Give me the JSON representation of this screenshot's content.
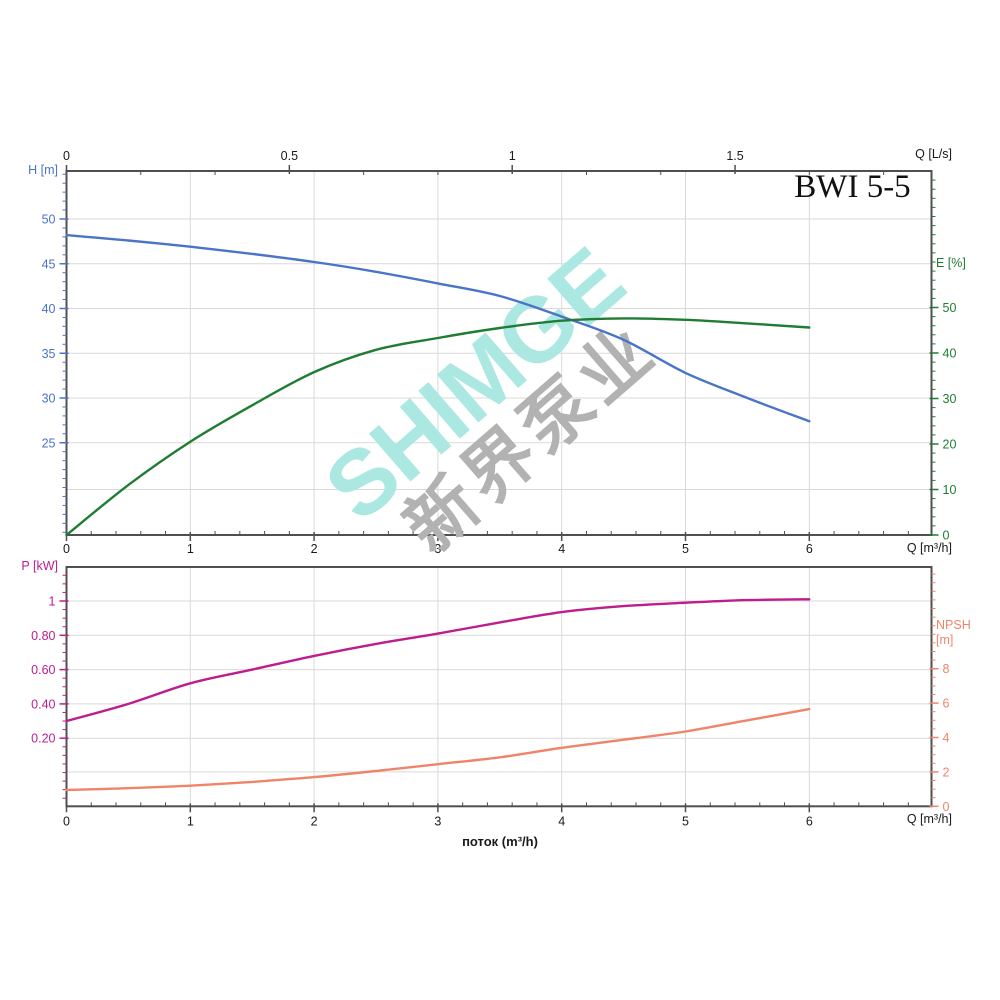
{
  "title": "BWI 5-5",
  "watermark": {
    "brand": "SHIMGE",
    "cjk": "新界泵业"
  },
  "colors": {
    "text": "#1a1a1a",
    "frame": "#4f4f4f",
    "grid": "#d9d9d9",
    "axis_h": "#4a74c8",
    "axis_e": "#1f7d33",
    "axis_p": "#bd1d8d",
    "axis_npsh": "#f0846a",
    "watermark_brand": "#ace8e2",
    "watermark_cjk": "#b2b2b2"
  },
  "labels": {
    "top_chart": {
      "left_axis": "H [m]",
      "right_axis": "E [%]",
      "top_axis": "Q [L/s]",
      "bottom_axis": "Q [m³/h]"
    },
    "bottom_chart": {
      "left_axis": "P [kW]",
      "right_axis_line1": "NPSH",
      "right_axis_line2": "[m]",
      "bottom_axis": "Q [m³/h]",
      "flow_caption": "поток (m³/h)"
    }
  },
  "chart_data": [
    {
      "name": "head-efficiency-chart",
      "type": "line",
      "title": "BWI 5-5",
      "xlabel": "Q [m³/h]",
      "x": {
        "min": 0,
        "max_data": 6,
        "ticks": [
          0,
          1,
          2,
          3,
          4,
          5,
          6
        ],
        "labels": [
          "0",
          "1",
          "2",
          "3",
          "4",
          "5",
          "6"
        ],
        "minor_step": 0.2
      },
      "x_top": {
        "unit": "Q [L/s]",
        "ticks": [
          0,
          0.5,
          1,
          1.5
        ],
        "labels": [
          "0",
          "0.5",
          "1",
          "1.5"
        ],
        "m3h_per_unit": 3.6
      },
      "y_left": {
        "label": "H [m]",
        "ticks": [
          50,
          45,
          40,
          35,
          30,
          25
        ],
        "labels": [
          "50",
          "45",
          "40",
          "35",
          "30",
          "25"
        ],
        "minor_step": 1,
        "color_key": "axis_h"
      },
      "y_right": {
        "label": "E [%]",
        "ticks": [
          50,
          40,
          30,
          20,
          10,
          0
        ],
        "labels": [
          "50",
          "40",
          "30",
          "20",
          "10",
          "0"
        ],
        "minor_step": 2,
        "color_key": "axis_e"
      },
      "grid": true,
      "series": [
        {
          "name": "H",
          "axis": "left",
          "color_key": "axis_h",
          "points": [
            [
              0,
              48.2
            ],
            [
              0.5,
              47.6
            ],
            [
              1,
              46.9
            ],
            [
              1.5,
              46.1
            ],
            [
              2,
              45.2
            ],
            [
              2.5,
              44.1
            ],
            [
              3,
              42.8
            ],
            [
              3.5,
              41.4
            ],
            [
              4,
              39.1
            ],
            [
              4.5,
              36.5
            ],
            [
              5,
              32.8
            ],
            [
              5.5,
              30.0
            ],
            [
              6,
              27.4
            ]
          ]
        },
        {
          "name": "E",
          "axis": "right",
          "color_key": "axis_e",
          "points": [
            [
              0,
              0
            ],
            [
              0.5,
              11
            ],
            [
              1,
              20.5
            ],
            [
              1.5,
              28.5
            ],
            [
              2,
              35.8
            ],
            [
              2.5,
              40.7
            ],
            [
              3,
              43.3
            ],
            [
              3.5,
              45.5
            ],
            [
              4,
              47.1
            ],
            [
              4.5,
              47.6
            ],
            [
              5,
              47.3
            ],
            [
              5.5,
              46.5
            ],
            [
              6,
              45.6
            ]
          ]
        }
      ]
    },
    {
      "name": "power-npsh-chart",
      "type": "line",
      "xlabel": "Q [m³/h]",
      "x": {
        "min": 0,
        "max_data": 6,
        "ticks": [
          0,
          1,
          2,
          3,
          4,
          5,
          6
        ],
        "labels": [
          "0",
          "1",
          "2",
          "3",
          "4",
          "5",
          "6"
        ],
        "minor_step": 0.2
      },
      "y_left": {
        "label": "P [kW]",
        "ticks": [
          1,
          0.8,
          0.6,
          0.4,
          0.2
        ],
        "labels": [
          "1",
          "0.80",
          "0.60",
          "0.40",
          "0.20"
        ],
        "minor_step": 0.05,
        "color_key": "axis_p"
      },
      "y_right": {
        "label": "NPSH [m]",
        "ticks": [
          8,
          6,
          4,
          2,
          0
        ],
        "labels": [
          "8",
          "6",
          "4",
          "2",
          "0"
        ],
        "minor_step": 0.5,
        "color_key": "axis_npsh"
      },
      "grid": true,
      "series": [
        {
          "name": "P",
          "axis": "left",
          "color_key": "axis_p",
          "points": [
            [
              0,
              0.3
            ],
            [
              0.5,
              0.4
            ],
            [
              1,
              0.52
            ],
            [
              1.5,
              0.6
            ],
            [
              2,
              0.68
            ],
            [
              2.5,
              0.75
            ],
            [
              3,
              0.81
            ],
            [
              3.5,
              0.875
            ],
            [
              4,
              0.935
            ],
            [
              4.5,
              0.97
            ],
            [
              5,
              0.99
            ],
            [
              5.5,
              1.005
            ],
            [
              6,
              1.01
            ]
          ]
        },
        {
          "name": "NPSH",
          "axis": "right",
          "color_key": "axis_npsh",
          "points": [
            [
              0,
              0.95
            ],
            [
              0.5,
              1.05
            ],
            [
              1,
              1.2
            ],
            [
              1.5,
              1.42
            ],
            [
              2,
              1.7
            ],
            [
              2.5,
              2.05
            ],
            [
              3,
              2.45
            ],
            [
              3.5,
              2.85
            ],
            [
              4,
              3.4
            ],
            [
              4.5,
              3.87
            ],
            [
              5,
              4.35
            ],
            [
              5.5,
              5.0
            ],
            [
              6,
              5.65
            ]
          ]
        }
      ]
    }
  ]
}
